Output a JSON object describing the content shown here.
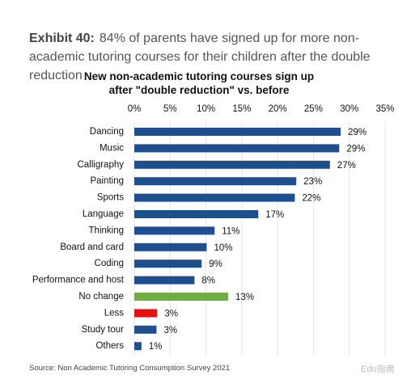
{
  "chart_data": {
    "type": "hbar",
    "exhibit_label": "Exhibit 40:",
    "subtitle": "84% of parents have signed up for more non-academic tutoring courses for their children after the double reduction",
    "title": "New non-academic tutoring courses sign up after \"double reduction\" vs. before",
    "categories": [
      "Dancing",
      "Music",
      "Calligraphy",
      "Painting",
      "Sports",
      "Language",
      "Thinking",
      "Board and card",
      "Coding",
      "Performance and host",
      "No change",
      "Less",
      "Study tour",
      "Others"
    ],
    "values": [
      28.8,
      28.6,
      27.3,
      22.6,
      22.4,
      17.3,
      11.2,
      10.1,
      9.4,
      8.4,
      13.1,
      3.2,
      3.1,
      1.0
    ],
    "value_labels": [
      "29%",
      "29%",
      "27%",
      "23%",
      "22%",
      "17%",
      "11%",
      "10%",
      "9%",
      "8%",
      "13%",
      "3%",
      "3%",
      "1%"
    ],
    "colors": [
      "#1f4e8f",
      "#1f4e8f",
      "#1f4e8f",
      "#1f4e8f",
      "#1f4e8f",
      "#1f4e8f",
      "#1f4e8f",
      "#1f4e8f",
      "#1f4e8f",
      "#1f4e8f",
      "#70ad47",
      "#e81010",
      "#1f4e8f",
      "#1f4e8f"
    ],
    "xlim": [
      0,
      35
    ],
    "xticks": [
      {
        "value": 0,
        "label": "0%"
      },
      {
        "value": 5,
        "label": "5%"
      },
      {
        "value": 10,
        "label": "10%"
      },
      {
        "value": 15,
        "label": "15%"
      },
      {
        "value": 20,
        "label": "20%"
      },
      {
        "value": 25,
        "label": "25%"
      },
      {
        "value": 30,
        "label": "30%"
      },
      {
        "value": 35,
        "label": "35%"
      }
    ],
    "grid": true,
    "source": "Source: Non Academic Tutoring Consumption Survey 2021",
    "watermark": "Edu指南"
  }
}
